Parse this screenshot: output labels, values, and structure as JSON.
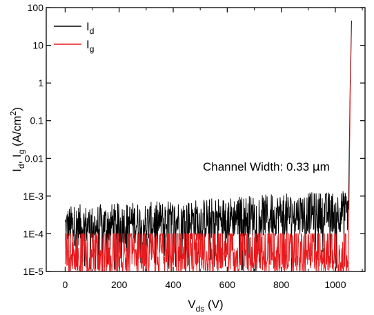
{
  "chart_data": {
    "type": "line",
    "xlabel": {
      "main": "V",
      "sub": "ds",
      "unit": " (V)"
    },
    "ylabel": {
      "p1": "I",
      "s1": "d",
      "p2": ", I",
      "s2": "g",
      "p3": " (A/cm",
      "sup": "2",
      "p4": ")"
    },
    "xlim": [
      -70,
      1110
    ],
    "ylim": [
      1e-05,
      100
    ],
    "yscale": "log",
    "x_ticks": [
      0,
      200,
      400,
      600,
      800,
      1000
    ],
    "x_tick_labels": [
      "0",
      "200",
      "400",
      "600",
      "800",
      "1000"
    ],
    "y_ticks": [
      1e-05,
      0.0001,
      0.001,
      0.01,
      0.1,
      1,
      10,
      100
    ],
    "y_tick_labels": [
      "1E-5",
      "1E-4",
      "1E-3",
      "0.01",
      "0.1",
      "1",
      "10",
      "100"
    ],
    "annotation": {
      "prefix": "Channel Width: 0.33 ",
      "unit_mu": "μ",
      "unit_rest": "m"
    },
    "legend_position": "top-left",
    "series": [
      {
        "name": "I",
        "name_sub": "d",
        "color": "#000000",
        "x": [
          0,
          50,
          100,
          150,
          200,
          250,
          300,
          350,
          400,
          450,
          500,
          550,
          600,
          650,
          700,
          750,
          800,
          850,
          900,
          950,
          1000,
          1050,
          1055,
          1060
        ],
        "y": [
          0.00015,
          0.00017,
          0.00016,
          0.00018,
          0.00018,
          0.0002,
          0.00019,
          0.00021,
          0.00022,
          0.00023,
          0.00024,
          0.00026,
          0.00027,
          0.00029,
          0.0003,
          0.00031,
          0.00033,
          0.00034,
          0.00035,
          0.00036,
          0.00038,
          0.0004,
          1.0,
          45
        ]
      },
      {
        "name": "I",
        "name_sub": "g",
        "color": "#e8191c",
        "x": [
          0,
          50,
          100,
          150,
          200,
          250,
          300,
          350,
          400,
          450,
          500,
          550,
          600,
          650,
          700,
          750,
          800,
          850,
          900,
          950,
          1000,
          1050,
          1055,
          1060
        ],
        "y": [
          5e-05,
          5e-05,
          4.5e-05,
          5e-05,
          5e-05,
          5e-05,
          4.8e-05,
          5e-05,
          5e-05,
          5e-05,
          5e-05,
          5e-05,
          5e-05,
          5e-05,
          5e-05,
          5e-05,
          5e-05,
          5e-05,
          5e-05,
          5e-05,
          5e-05,
          5e-05,
          0.5,
          25
        ]
      }
    ]
  }
}
